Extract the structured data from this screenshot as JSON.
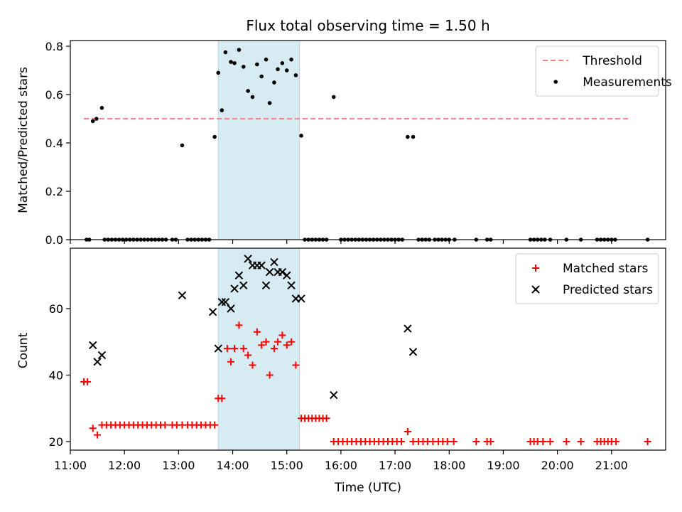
{
  "chart_data": [
    {
      "type": "scatter",
      "title": "Flux total observing time = 1.50 h",
      "xlabel": "",
      "ylabel": "Matched/Predicted stars",
      "xlim": [
        "11:00",
        "22:00"
      ],
      "ylim": [
        0,
        0.82
      ],
      "yticks": [
        "0.0",
        "0.2",
        "0.4",
        "0.6",
        "0.8"
      ],
      "highlight_span": [
        "13:44",
        "15:14"
      ],
      "legend_position": "upper-right",
      "threshold": {
        "name": "Threshold",
        "value": 0.5,
        "x_range": [
          "11:15",
          "21:20"
        ],
        "color": "#ff8080"
      },
      "series": [
        {
          "name": "Measurements",
          "color": "#000000",
          "points": [
            [
              "11:18",
              0
            ],
            [
              "11:21",
              0
            ],
            [
              "11:25",
              0.49
            ],
            [
              "11:29",
              0.5
            ],
            [
              "11:35",
              0.545
            ],
            [
              "11:38",
              0
            ],
            [
              "11:42",
              0
            ],
            [
              "11:46",
              0
            ],
            [
              "11:50",
              0
            ],
            [
              "11:54",
              0
            ],
            [
              "11:58",
              0
            ],
            [
              "12:02",
              0
            ],
            [
              "12:06",
              0
            ],
            [
              "12:10",
              0
            ],
            [
              "12:14",
              0
            ],
            [
              "12:18",
              0
            ],
            [
              "12:22",
              0
            ],
            [
              "12:26",
              0
            ],
            [
              "12:30",
              0
            ],
            [
              "12:34",
              0
            ],
            [
              "12:38",
              0
            ],
            [
              "12:42",
              0
            ],
            [
              "12:46",
              0
            ],
            [
              "12:53",
              0
            ],
            [
              "12:57",
              0
            ],
            [
              "13:04",
              0.39
            ],
            [
              "13:10",
              0
            ],
            [
              "13:14",
              0
            ],
            [
              "13:18",
              0
            ],
            [
              "13:22",
              0
            ],
            [
              "13:26",
              0
            ],
            [
              "13:30",
              0
            ],
            [
              "13:34",
              0
            ],
            [
              "13:40",
              0.425
            ],
            [
              "13:44",
              0.69
            ],
            [
              "13:48",
              0.535
            ],
            [
              "13:52",
              0.775
            ],
            [
              "13:58",
              0.735
            ],
            [
              "14:02",
              0.73
            ],
            [
              "14:07",
              0.785
            ],
            [
              "14:12",
              0.715
            ],
            [
              "14:17",
              0.615
            ],
            [
              "14:22",
              0.59
            ],
            [
              "14:27",
              0.725
            ],
            [
              "14:32",
              0.675
            ],
            [
              "14:37",
              0.745
            ],
            [
              "14:41",
              0.565
            ],
            [
              "14:46",
              0.65
            ],
            [
              "14:50",
              0.705
            ],
            [
              "14:55",
              0.73
            ],
            [
              "15:00",
              0.7
            ],
            [
              "15:05",
              0.745
            ],
            [
              "15:10",
              0.68
            ],
            [
              "15:16",
              0.43
            ],
            [
              "15:20",
              0
            ],
            [
              "15:24",
              0
            ],
            [
              "15:28",
              0
            ],
            [
              "15:32",
              0
            ],
            [
              "15:36",
              0
            ],
            [
              "15:40",
              0
            ],
            [
              "15:44",
              0
            ],
            [
              "15:52",
              0.59
            ],
            [
              "16:00",
              0
            ],
            [
              "16:04",
              0
            ],
            [
              "16:08",
              0
            ],
            [
              "16:12",
              0
            ],
            [
              "16:16",
              0
            ],
            [
              "16:20",
              0
            ],
            [
              "16:24",
              0
            ],
            [
              "16:28",
              0
            ],
            [
              "16:32",
              0
            ],
            [
              "16:36",
              0
            ],
            [
              "16:40",
              0
            ],
            [
              "16:44",
              0
            ],
            [
              "16:48",
              0
            ],
            [
              "16:52",
              0
            ],
            [
              "16:56",
              0
            ],
            [
              "17:00",
              0
            ],
            [
              "17:04",
              0
            ],
            [
              "17:08",
              0
            ],
            [
              "17:14",
              0.425
            ],
            [
              "17:20",
              0.425
            ],
            [
              "17:26",
              0
            ],
            [
              "17:30",
              0
            ],
            [
              "17:34",
              0
            ],
            [
              "17:38",
              0
            ],
            [
              "17:44",
              0
            ],
            [
              "17:48",
              0
            ],
            [
              "17:52",
              0
            ],
            [
              "17:56",
              0
            ],
            [
              "18:00",
              0
            ],
            [
              "18:06",
              0
            ],
            [
              "18:30",
              0
            ],
            [
              "18:42",
              0
            ],
            [
              "18:46",
              0
            ],
            [
              "19:30",
              0
            ],
            [
              "19:34",
              0
            ],
            [
              "19:38",
              0
            ],
            [
              "19:42",
              0
            ],
            [
              "19:46",
              0
            ],
            [
              "19:52",
              0
            ],
            [
              "20:10",
              0
            ],
            [
              "20:26",
              0
            ],
            [
              "20:44",
              0
            ],
            [
              "20:48",
              0
            ],
            [
              "20:52",
              0
            ],
            [
              "20:56",
              0
            ],
            [
              "21:00",
              0
            ],
            [
              "21:04",
              0
            ],
            [
              "21:40",
              0
            ]
          ]
        }
      ]
    },
    {
      "type": "scatter",
      "title": "",
      "xlabel": "Time (UTC)",
      "ylabel": "Count",
      "xlim": [
        "11:00",
        "22:00"
      ],
      "ylim": [
        17.5,
        77
      ],
      "xticks": [
        "11:00",
        "12:00",
        "13:00",
        "14:00",
        "15:00",
        "16:00",
        "17:00",
        "18:00",
        "19:00",
        "20:00",
        "21:00"
      ],
      "yticks": [
        "20",
        "40",
        "60"
      ],
      "highlight_span": [
        "13:44",
        "15:14"
      ],
      "legend_position": "upper-right",
      "series": [
        {
          "name": "Matched stars",
          "marker": "plus",
          "color": "#ff0000",
          "points": [
            [
              "11:15",
              38
            ],
            [
              "11:19",
              38
            ],
            [
              "11:25",
              24
            ],
            [
              "11:30",
              22
            ],
            [
              "11:35",
              25
            ],
            [
              "11:40",
              25
            ],
            [
              "11:45",
              25
            ],
            [
              "11:50",
              25
            ],
            [
              "11:55",
              25
            ],
            [
              "12:00",
              25
            ],
            [
              "12:05",
              25
            ],
            [
              "12:10",
              25
            ],
            [
              "12:15",
              25
            ],
            [
              "12:20",
              25
            ],
            [
              "12:25",
              25
            ],
            [
              "12:30",
              25
            ],
            [
              "12:35",
              25
            ],
            [
              "12:40",
              25
            ],
            [
              "12:45",
              25
            ],
            [
              "12:53",
              25
            ],
            [
              "12:58",
              25
            ],
            [
              "13:04",
              25
            ],
            [
              "13:10",
              25
            ],
            [
              "13:15",
              25
            ],
            [
              "13:20",
              25
            ],
            [
              "13:25",
              25
            ],
            [
              "13:30",
              25
            ],
            [
              "13:35",
              25
            ],
            [
              "13:40",
              25
            ],
            [
              "13:44",
              33
            ],
            [
              "13:48",
              33
            ],
            [
              "13:54",
              48
            ],
            [
              "13:58",
              44
            ],
            [
              "14:02",
              48
            ],
            [
              "14:07",
              55
            ],
            [
              "14:12",
              48
            ],
            [
              "14:17",
              46
            ],
            [
              "14:22",
              43
            ],
            [
              "14:27",
              53
            ],
            [
              "14:32",
              49
            ],
            [
              "14:37",
              50
            ],
            [
              "14:41",
              40
            ],
            [
              "14:46",
              48
            ],
            [
              "14:50",
              50
            ],
            [
              "14:55",
              52
            ],
            [
              "15:00",
              49
            ],
            [
              "15:05",
              50
            ],
            [
              "15:10",
              43
            ],
            [
              "15:16",
              27
            ],
            [
              "15:20",
              27
            ],
            [
              "15:24",
              27
            ],
            [
              "15:28",
              27
            ],
            [
              "15:32",
              27
            ],
            [
              "15:36",
              27
            ],
            [
              "15:40",
              27
            ],
            [
              "15:44",
              27
            ],
            [
              "15:52",
              20
            ],
            [
              "15:57",
              20
            ],
            [
              "16:02",
              20
            ],
            [
              "16:07",
              20
            ],
            [
              "16:12",
              20
            ],
            [
              "16:17",
              20
            ],
            [
              "16:22",
              20
            ],
            [
              "16:27",
              20
            ],
            [
              "16:32",
              20
            ],
            [
              "16:37",
              20
            ],
            [
              "16:42",
              20
            ],
            [
              "16:47",
              20
            ],
            [
              "16:52",
              20
            ],
            [
              "16:57",
              20
            ],
            [
              "17:02",
              20
            ],
            [
              "17:07",
              20
            ],
            [
              "17:14",
              23
            ],
            [
              "17:20",
              20
            ],
            [
              "17:26",
              20
            ],
            [
              "17:31",
              20
            ],
            [
              "17:36",
              20
            ],
            [
              "17:42",
              20
            ],
            [
              "17:48",
              20
            ],
            [
              "17:53",
              20
            ],
            [
              "17:58",
              20
            ],
            [
              "18:05",
              20
            ],
            [
              "18:30",
              20
            ],
            [
              "18:42",
              20
            ],
            [
              "18:46",
              20
            ],
            [
              "19:30",
              20
            ],
            [
              "19:34",
              20
            ],
            [
              "19:38",
              20
            ],
            [
              "19:44",
              20
            ],
            [
              "19:52",
              20
            ],
            [
              "20:10",
              20
            ],
            [
              "20:26",
              20
            ],
            [
              "20:44",
              20
            ],
            [
              "20:48",
              20
            ],
            [
              "20:52",
              20
            ],
            [
              "20:56",
              20
            ],
            [
              "21:00",
              20
            ],
            [
              "21:05",
              20
            ],
            [
              "21:40",
              20
            ]
          ]
        },
        {
          "name": "Predicted stars",
          "marker": "x",
          "color": "#000000",
          "points": [
            [
              "11:25",
              49
            ],
            [
              "11:30",
              44
            ],
            [
              "11:35",
              46
            ],
            [
              "13:04",
              64
            ],
            [
              "13:38",
              59
            ],
            [
              "13:44",
              48
            ],
            [
              "13:48",
              62
            ],
            [
              "13:52",
              62
            ],
            [
              "13:58",
              60
            ],
            [
              "14:02",
              66
            ],
            [
              "14:07",
              70
            ],
            [
              "14:12",
              67
            ],
            [
              "14:17",
              75
            ],
            [
              "14:22",
              73
            ],
            [
              "14:27",
              73
            ],
            [
              "14:32",
              73
            ],
            [
              "14:37",
              67
            ],
            [
              "14:41",
              71
            ],
            [
              "14:46",
              74
            ],
            [
              "14:50",
              71
            ],
            [
              "14:55",
              71
            ],
            [
              "15:00",
              70
            ],
            [
              "15:05",
              67
            ],
            [
              "15:10",
              63
            ],
            [
              "15:16",
              63
            ],
            [
              "15:52",
              34
            ],
            [
              "17:14",
              54
            ],
            [
              "17:20",
              47
            ]
          ]
        }
      ]
    }
  ]
}
